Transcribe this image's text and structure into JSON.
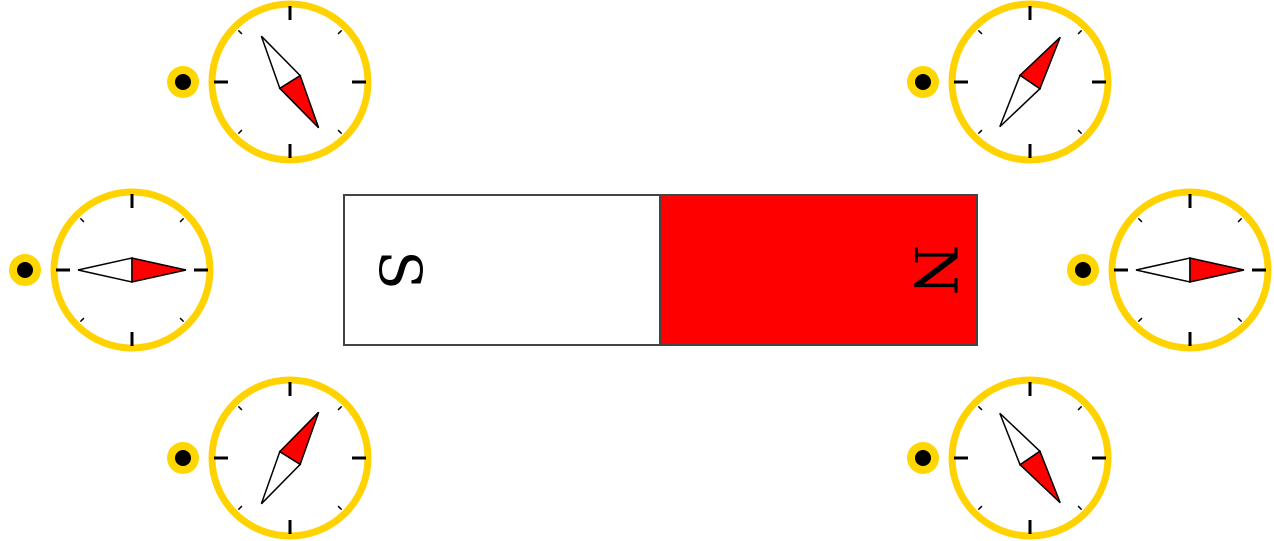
{
  "magnet": {
    "south_label": "S",
    "north_label": "N"
  }
}
